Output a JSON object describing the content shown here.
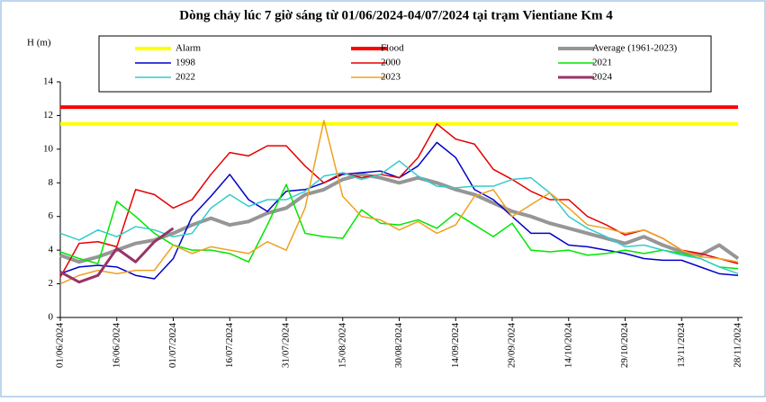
{
  "chart_data": {
    "type": "line",
    "title": "Dòng chảy lúc 7 giờ sáng từ 01/06/2024-04/07/2024 tại trạm Vientiane Km 4",
    "y_label": "H (m)",
    "x": [
      "01/06/2024",
      "06/06/2024",
      "11/06/2024",
      "16/06/2024",
      "21/06/2024",
      "26/06/2024",
      "01/07/2024",
      "06/07/2024",
      "11/07/2024",
      "16/07/2024",
      "21/07/2024",
      "26/07/2024",
      "31/07/2024",
      "05/08/2024",
      "10/08/2024",
      "15/08/2024",
      "20/08/2024",
      "25/08/2024",
      "30/08/2024",
      "04/09/2024",
      "09/09/2024",
      "14/09/2024",
      "19/09/2024",
      "24/09/2024",
      "29/09/2024",
      "04/10/2024",
      "09/10/2024",
      "14/10/2024",
      "19/10/2024",
      "24/10/2024",
      "29/10/2024",
      "03/11/2024",
      "08/11/2024",
      "13/11/2024",
      "18/11/2024",
      "23/11/2024",
      "28/11/2024"
    ],
    "xlim": [
      "01/06/2024",
      "28/11/2024"
    ],
    "xticks": [
      "01/06/2024",
      "16/06/2024",
      "01/07/2024",
      "16/07/2024",
      "31/07/2024",
      "15/08/2024",
      "30/08/2024",
      "14/09/2024",
      "29/09/2024",
      "14/10/2024",
      "29/10/2024",
      "13/11/2024",
      "28/11/2024"
    ],
    "ylim": [
      0,
      14
    ],
    "yticks": [
      0,
      2,
      4,
      6,
      8,
      10,
      12,
      14
    ],
    "series": [
      {
        "name": "Alarm",
        "color": "#ffff00",
        "width": 4,
        "values": [
          11.5,
          11.5,
          11.5,
          11.5,
          11.5,
          11.5,
          11.5,
          11.5,
          11.5,
          11.5,
          11.5,
          11.5,
          11.5,
          11.5,
          11.5,
          11.5,
          11.5,
          11.5,
          11.5,
          11.5,
          11.5,
          11.5,
          11.5,
          11.5,
          11.5,
          11.5,
          11.5,
          11.5,
          11.5,
          11.5,
          11.5,
          11.5,
          11.5,
          11.5,
          11.5,
          11.5,
          11.5
        ]
      },
      {
        "name": "Flood",
        "color": "#ff0000",
        "width": 4,
        "values": [
          12.5,
          12.5,
          12.5,
          12.5,
          12.5,
          12.5,
          12.5,
          12.5,
          12.5,
          12.5,
          12.5,
          12.5,
          12.5,
          12.5,
          12.5,
          12.5,
          12.5,
          12.5,
          12.5,
          12.5,
          12.5,
          12.5,
          12.5,
          12.5,
          12.5,
          12.5,
          12.5,
          12.5,
          12.5,
          12.5,
          12.5,
          12.5,
          12.5,
          12.5,
          12.5,
          12.5,
          12.5
        ]
      },
      {
        "name": "Average (1961-2023)",
        "color": "#969696",
        "width": 4,
        "values": [
          3.7,
          3.3,
          3.6,
          4.0,
          4.4,
          4.6,
          5.0,
          5.5,
          5.9,
          5.5,
          5.7,
          6.2,
          6.5,
          7.3,
          7.6,
          8.2,
          8.5,
          8.3,
          8.0,
          8.3,
          8.0,
          7.6,
          7.3,
          6.8,
          6.3,
          6.0,
          5.6,
          5.3,
          5.0,
          4.7,
          4.4,
          4.8,
          4.3,
          3.9,
          3.7,
          4.3,
          3.5
        ]
      },
      {
        "name": "1998",
        "color": "#0000cc",
        "width": 1.5,
        "values": [
          2.6,
          3.0,
          3.1,
          3.0,
          2.5,
          2.3,
          3.5,
          6.0,
          7.2,
          8.5,
          7.0,
          6.3,
          7.5,
          7.6,
          8.0,
          8.5,
          8.6,
          8.7,
          8.3,
          9.0,
          10.4,
          9.5,
          7.6,
          7.0,
          6.0,
          5.0,
          5.0,
          4.3,
          4.2,
          4.0,
          3.8,
          3.5,
          3.4,
          3.4,
          3.0,
          2.6,
          2.5
        ]
      },
      {
        "name": "2000",
        "color": "#e60000",
        "width": 1.5,
        "values": [
          2.4,
          4.4,
          4.5,
          4.2,
          7.6,
          7.3,
          6.5,
          7.0,
          8.5,
          9.8,
          9.6,
          10.2,
          10.2,
          9.0,
          8.0,
          8.6,
          8.3,
          8.5,
          8.3,
          9.5,
          11.5,
          10.6,
          10.3,
          8.8,
          8.2,
          7.5,
          7.0,
          7.0,
          6.0,
          5.5,
          4.9,
          5.2,
          4.7,
          4.0,
          3.8,
          3.5,
          3.2
        ]
      },
      {
        "name": "2021",
        "color": "#00e600",
        "width": 1.5,
        "values": [
          3.9,
          3.5,
          3.2,
          6.9,
          6.0,
          5.0,
          4.3,
          4.0,
          4.0,
          3.8,
          3.3,
          5.5,
          7.9,
          5.0,
          4.8,
          4.7,
          6.4,
          5.6,
          5.5,
          5.8,
          5.3,
          6.2,
          5.5,
          4.8,
          5.6,
          4.0,
          3.9,
          4.0,
          3.7,
          3.8,
          4.0,
          3.8,
          4.0,
          3.8,
          3.5,
          3.0,
          2.9
        ]
      },
      {
        "name": "2022",
        "color": "#33cccc",
        "width": 1.5,
        "values": [
          5.0,
          4.6,
          5.2,
          4.8,
          5.4,
          5.2,
          4.8,
          5.0,
          6.5,
          7.3,
          6.6,
          7.0,
          7.0,
          7.5,
          8.4,
          8.6,
          8.2,
          8.5,
          9.3,
          8.4,
          7.8,
          7.7,
          7.8,
          7.8,
          8.2,
          8.3,
          7.4,
          6.0,
          5.3,
          4.8,
          4.2,
          4.3,
          4.0,
          3.7,
          3.5,
          3.0,
          2.6
        ]
      },
      {
        "name": "2023",
        "color": "#f0a020",
        "width": 1.5,
        "values": [
          2.0,
          2.5,
          2.8,
          2.6,
          2.8,
          2.8,
          4.3,
          3.8,
          4.2,
          4.0,
          3.8,
          4.5,
          4.0,
          6.5,
          11.7,
          7.2,
          6.0,
          5.8,
          5.2,
          5.7,
          5.0,
          5.5,
          7.2,
          7.6,
          6.0,
          6.7,
          7.4,
          6.5,
          5.5,
          5.3,
          5.0,
          5.2,
          4.7,
          4.0,
          3.6,
          3.5,
          3.3
        ]
      },
      {
        "name": "2024",
        "color": "#993366",
        "width": 3,
        "values": [
          2.7,
          2.1,
          2.5,
          4.1,
          3.3,
          4.5,
          5.3,
          null,
          null,
          null,
          null,
          null,
          null,
          null,
          null,
          null,
          null,
          null,
          null,
          null,
          null,
          null,
          null,
          null,
          null,
          null,
          null,
          null,
          null,
          null,
          null,
          null,
          null,
          null,
          null,
          null,
          null
        ]
      }
    ]
  }
}
